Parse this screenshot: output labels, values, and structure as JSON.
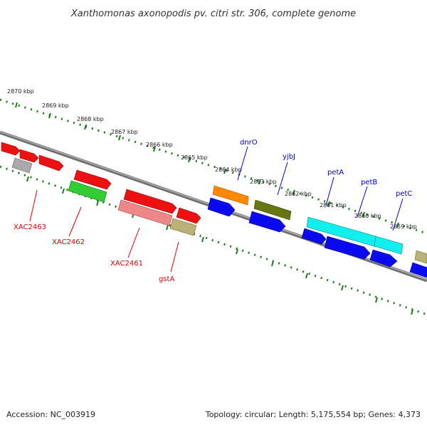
{
  "title": "Xanthomonas axonopodis pv. citri str. 306, complete genome",
  "footer": {
    "accession": "Accession: NC_003919",
    "summary": "Topology: circular; Length: 5,175,554 bp; Genes: 4,373"
  },
  "ticks": [
    "2870 kbp",
    "2869 kbp",
    "2868 kbp",
    "2867 kbp",
    "2866 kbp",
    "2865 kbp",
    "2864 kbp",
    "2863 kbp",
    "2862 kbp",
    "2861 kbp",
    "2860 kbp",
    "2859 kbp"
  ],
  "labels": {
    "xac2463": "XAC2463",
    "xac2462": "XAC2462",
    "xac2461": "XAC2461",
    "gsta": "gstA",
    "dnro": "dnrO",
    "ybjj": "yjbJ",
    "peta": "petA",
    "petb": "petB",
    "petc": "petC"
  },
  "colors": {
    "red": "#ee1111",
    "blue": "#0a0af0",
    "green": "#33cc33",
    "pink": "#ee8888",
    "olive": "#667711",
    "orange": "#ff8800",
    "cyan": "#11eeee",
    "khaki": "#bbb177",
    "gray": "#aaaaaa",
    "backbone": "#808080",
    "dots": "#1e7a1e",
    "label_red": "#dd0000",
    "label_blue": "#0000cc"
  }
}
